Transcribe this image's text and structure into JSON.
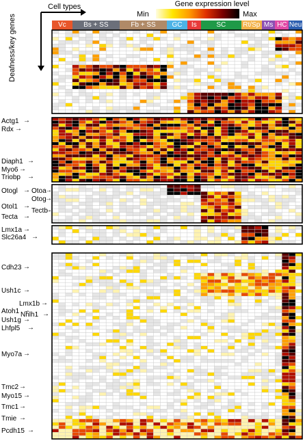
{
  "axis": {
    "x_title": "Cell types",
    "y_title": "Deafness/key genes"
  },
  "legend": {
    "title": "Gene expression level",
    "min": "Min",
    "max": "Max",
    "colors": [
      "#fffde0",
      "#ffe600",
      "#ff9a00",
      "#e03000",
      "#7a0000",
      "#000000"
    ]
  },
  "chart_data": {
    "type": "heatmap",
    "title": "",
    "xlabel": "Cell types",
    "ylabel": "Deafness/key genes",
    "cell_types": [
      {
        "label": "Vc",
        "color": "#e8562a"
      },
      {
        "label": "Bs + SS",
        "color": "#6b6f7a"
      },
      {
        "label": "Fb + SS",
        "color": "#b08a67"
      },
      {
        "label": "GC",
        "color": "#4db3e6"
      },
      {
        "label": "Is",
        "color": "#e83a3a"
      },
      {
        "label": "SC",
        "color": "#1f9a48"
      },
      {
        "label": "Rt/Sp",
        "color": "#f2b34a"
      },
      {
        "label": "Ms",
        "color": "#8c4fb3"
      },
      {
        "label": "HC",
        "color": "#e04aa6"
      },
      {
        "label": "Neu",
        "color": "#2d5fb0"
      }
    ],
    "gene_labels": [
      "Actg1",
      "Rdx",
      "Diaph1",
      "Myo6",
      "Triobp",
      "Otogl",
      "Otoa",
      "Otog",
      "Otol1",
      "Tectb",
      "Tecta",
      "Lmx1a",
      "Slc26a4",
      "Cdh23",
      "Ush1c",
      "Lmx1b",
      "Atoh1",
      "Nhlh1",
      "Ush1g",
      "Lhfpl5",
      "Myo7a",
      "Tmc2",
      "Myo15",
      "Tmc1",
      "Tmie",
      "Pcdh15"
    ],
    "blocks": [
      {
        "name": "block1",
        "rows": 24
      },
      {
        "name": "block2",
        "rows": 21
      },
      {
        "name": "block3",
        "rows": 11
      },
      {
        "name": "block4",
        "rows": 5
      },
      {
        "name": "block5",
        "rows": 56
      }
    ],
    "columns": 37
  }
}
